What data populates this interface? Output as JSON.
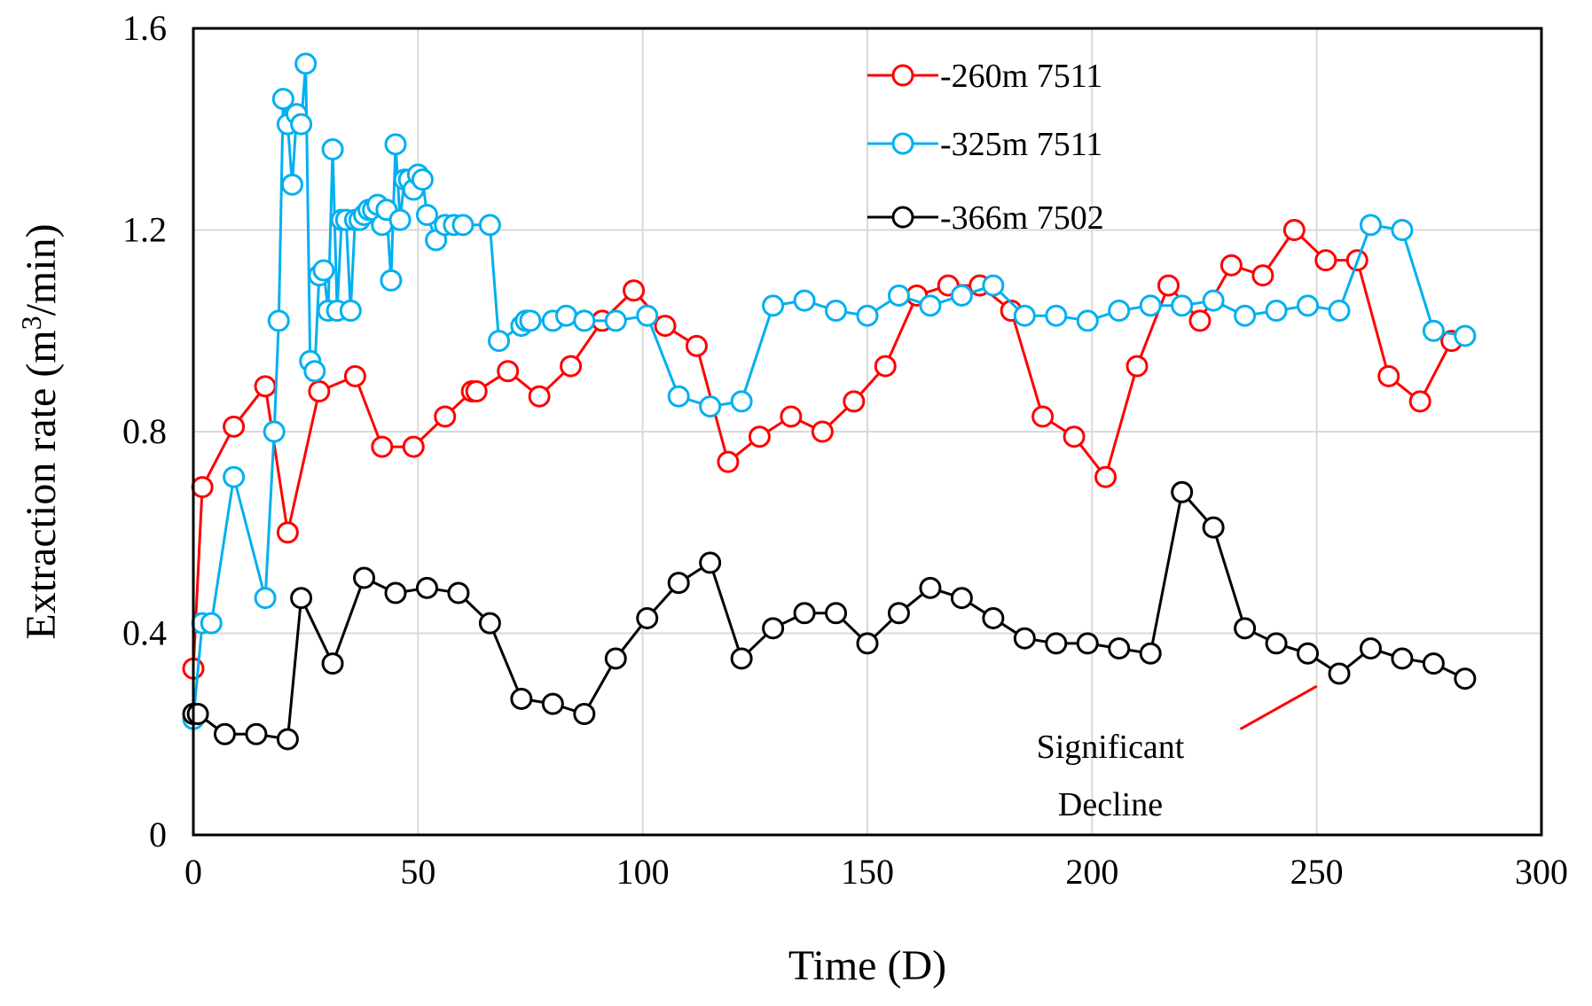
{
  "chart_data": {
    "type": "line",
    "title": "",
    "xlabel": "Time (D)",
    "ylabel_main": "Extraction rate (m",
    "ylabel_sup": "3",
    "ylabel_end": "/min)",
    "xlim": [
      0,
      300
    ],
    "ylim": [
      0,
      1.6
    ],
    "xticks": [
      0,
      50,
      100,
      150,
      200,
      250,
      300
    ],
    "yticks": [
      0,
      0.4,
      0.8,
      1.2,
      1.6
    ],
    "xtick_labels": [
      "0",
      "50",
      "100",
      "150",
      "200",
      "250",
      "300"
    ],
    "ytick_labels": [
      "0",
      "0.4",
      "0.8",
      "1.2",
      "1.6"
    ],
    "grid": true,
    "legend_position": "top-center",
    "annotation": {
      "line1": "Significant",
      "line2": "Decline",
      "arrow_color": "#ff0000",
      "arrow_from": [
        233,
        0.21
      ],
      "arrow_to": [
        250,
        0.295
      ]
    },
    "series": [
      {
        "name": "-260m 7511",
        "color": "#ff0000",
        "x": [
          0,
          2,
          9,
          16,
          21,
          28,
          36,
          42,
          49,
          56,
          62,
          63,
          70,
          77,
          84,
          91,
          98,
          105,
          112,
          119,
          126,
          133,
          140,
          147,
          154,
          161,
          168,
          175,
          182,
          189,
          196,
          203,
          210,
          217,
          224,
          231,
          238,
          245,
          252,
          259,
          266,
          273,
          280
        ],
        "y": [
          0.33,
          0.69,
          0.81,
          0.89,
          0.6,
          0.88,
          0.91,
          0.77,
          0.77,
          0.83,
          0.88,
          0.88,
          0.92,
          0.87,
          0.93,
          1.02,
          1.08,
          1.01,
          0.97,
          0.74,
          0.79,
          0.83,
          0.8,
          0.86,
          0.93,
          1.07,
          1.09,
          1.09,
          1.04,
          0.83,
          0.79,
          0.71,
          0.93,
          1.09,
          1.02,
          1.13,
          1.11,
          1.2,
          1.14,
          1.14,
          0.91,
          0.86,
          0.98
        ]
      },
      {
        "name": "-325m 7511",
        "color": "#00b0f0",
        "x": [
          0,
          2,
          4,
          9,
          16,
          18,
          19,
          20,
          21,
          22,
          23,
          24,
          25,
          26,
          27,
          28,
          29,
          30,
          31,
          32,
          33,
          34,
          35,
          36,
          37,
          38,
          39,
          40,
          41,
          42,
          43,
          44,
          45,
          46,
          47,
          48,
          49,
          50,
          51,
          52,
          54,
          56,
          58,
          60,
          66,
          68,
          73,
          74,
          75,
          80,
          83,
          87,
          94,
          101,
          108,
          115,
          122,
          129,
          136,
          143,
          150,
          157,
          164,
          171,
          178,
          185,
          192,
          199,
          206,
          213,
          220,
          227,
          234,
          241,
          248,
          255,
          262,
          269,
          276,
          283
        ],
        "y": [
          0.23,
          0.42,
          0.42,
          0.71,
          0.47,
          0.8,
          1.02,
          1.46,
          1.41,
          1.29,
          1.43,
          1.41,
          1.53,
          0.94,
          0.92,
          1.11,
          1.12,
          1.04,
          1.36,
          1.04,
          1.22,
          1.22,
          1.04,
          1.22,
          1.22,
          1.23,
          1.24,
          1.24,
          1.25,
          1.21,
          1.24,
          1.1,
          1.37,
          1.22,
          1.3,
          1.3,
          1.28,
          1.31,
          1.3,
          1.23,
          1.18,
          1.21,
          1.21,
          1.21,
          1.21,
          0.98,
          1.01,
          1.02,
          1.02,
          1.02,
          1.03,
          1.02,
          1.02,
          1.03,
          0.87,
          0.85,
          0.86,
          1.05,
          1.06,
          1.04,
          1.03,
          1.07,
          1.05,
          1.07,
          1.09,
          1.03,
          1.03,
          1.02,
          1.04,
          1.05,
          1.05,
          1.06,
          1.03,
          1.04,
          1.05,
          1.04,
          1.21,
          1.2,
          1.0,
          0.99
        ]
      },
      {
        "name": "-366m 7502",
        "color": "#000000",
        "x": [
          0,
          1,
          7,
          14,
          21,
          24,
          31,
          38,
          45,
          52,
          59,
          66,
          73,
          80,
          87,
          94,
          101,
          108,
          115,
          122,
          129,
          136,
          143,
          150,
          157,
          164,
          171,
          178,
          185,
          192,
          199,
          206,
          213,
          220,
          227,
          234,
          241,
          248,
          255,
          262,
          269,
          276,
          283
        ],
        "y": [
          0.24,
          0.24,
          0.2,
          0.2,
          0.19,
          0.47,
          0.34,
          0.51,
          0.48,
          0.49,
          0.48,
          0.42,
          0.27,
          0.26,
          0.24,
          0.35,
          0.43,
          0.5,
          0.54,
          0.35,
          0.41,
          0.44,
          0.44,
          0.38,
          0.44,
          0.49,
          0.47,
          0.43,
          0.39,
          0.38,
          0.38,
          0.37,
          0.36,
          0.68,
          0.61,
          0.41,
          0.38,
          0.36,
          0.32,
          0.37,
          0.35,
          0.34,
          0.31
        ]
      }
    ]
  }
}
